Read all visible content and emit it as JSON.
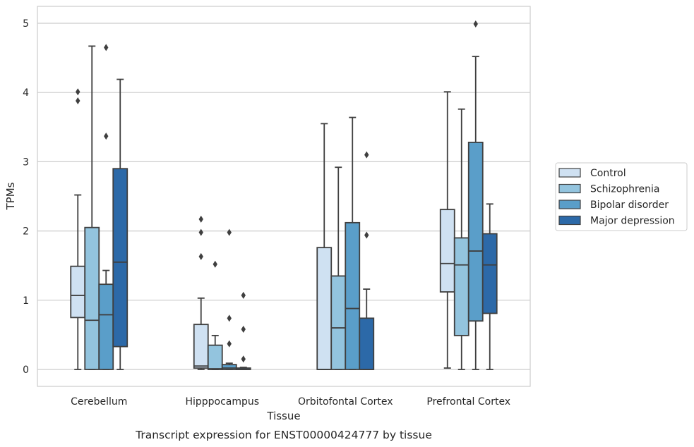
{
  "chart_data": {
    "type": "box",
    "title": "",
    "caption": "Transcript expression for ENST00000424777 by tissue",
    "xlabel": "Tissue",
    "ylabel": "TPMs",
    "ylim": [
      -0.25,
      5.25
    ],
    "yticks": [
      0,
      1,
      2,
      3,
      4,
      5
    ],
    "grid": "horizontal",
    "legend_position": "right",
    "categories": [
      "Cerebellum",
      "Hipppocampus",
      "Orbitofontal Cortex",
      "Prefrontal Cortex"
    ],
    "series": [
      {
        "name": "Control",
        "color": "#cfe1f2",
        "boxes": [
          {
            "whislo": 0.0,
            "q1": 0.75,
            "med": 1.07,
            "q3": 1.49,
            "whishi": 2.52,
            "fliers": [
              3.88,
              4.01
            ]
          },
          {
            "whislo": 0.0,
            "q1": 0.02,
            "med": 0.05,
            "q3": 0.65,
            "whishi": 1.03,
            "fliers": [
              1.63,
              1.98,
              2.17
            ]
          },
          {
            "whislo": 0.0,
            "q1": 0.0,
            "med": 0.0,
            "q3": 1.76,
            "whishi": 3.55,
            "fliers": []
          },
          {
            "whislo": 0.02,
            "q1": 1.12,
            "med": 1.53,
            "q3": 2.31,
            "whishi": 4.01,
            "fliers": []
          }
        ]
      },
      {
        "name": "Schizophrenia",
        "color": "#93c4de",
        "boxes": [
          {
            "whislo": 0.0,
            "q1": 0.0,
            "med": 0.71,
            "q3": 2.05,
            "whishi": 4.67,
            "fliers": []
          },
          {
            "whislo": 0.0,
            "q1": 0.0,
            "med": 0.01,
            "q3": 0.35,
            "whishi": 0.49,
            "fliers": [
              1.52
            ]
          },
          {
            "whislo": 0.0,
            "q1": 0.0,
            "med": 0.6,
            "q3": 1.35,
            "whishi": 2.92,
            "fliers": []
          },
          {
            "whislo": 0.0,
            "q1": 0.49,
            "med": 1.51,
            "q3": 1.9,
            "whishi": 3.76,
            "fliers": []
          }
        ]
      },
      {
        "name": "Bipolar disorder",
        "color": "#5a9ec9",
        "boxes": [
          {
            "whislo": 0.0,
            "q1": 0.0,
            "med": 0.79,
            "q3": 1.23,
            "whishi": 1.43,
            "fliers": [
              3.37,
              4.65
            ]
          },
          {
            "whislo": 0.0,
            "q1": 0.0,
            "med": 0.02,
            "q3": 0.07,
            "whishi": 0.09,
            "fliers": [
              0.37,
              0.74,
              1.98
            ]
          },
          {
            "whislo": 0.0,
            "q1": 0.0,
            "med": 0.88,
            "q3": 2.12,
            "whishi": 3.64,
            "fliers": []
          },
          {
            "whislo": 0.0,
            "q1": 0.7,
            "med": 1.71,
            "q3": 3.28,
            "whishi": 4.52,
            "fliers": [
              4.99
            ]
          }
        ]
      },
      {
        "name": "Major depression",
        "color": "#2c69a8",
        "boxes": [
          {
            "whislo": 0.0,
            "q1": 0.33,
            "med": 1.55,
            "q3": 2.9,
            "whishi": 4.19,
            "fliers": []
          },
          {
            "whislo": 0.0,
            "q1": 0.0,
            "med": 0.0,
            "q3": 0.02,
            "whishi": 0.03,
            "fliers": [
              0.15,
              0.58,
              1.07
            ]
          },
          {
            "whislo": 0.0,
            "q1": 0.0,
            "med": 0.0,
            "q3": 0.74,
            "whishi": 1.16,
            "fliers": [
              1.94,
              3.1
            ]
          },
          {
            "whislo": 0.0,
            "q1": 0.81,
            "med": 1.51,
            "q3": 1.96,
            "whishi": 2.39,
            "fliers": []
          }
        ]
      }
    ]
  }
}
